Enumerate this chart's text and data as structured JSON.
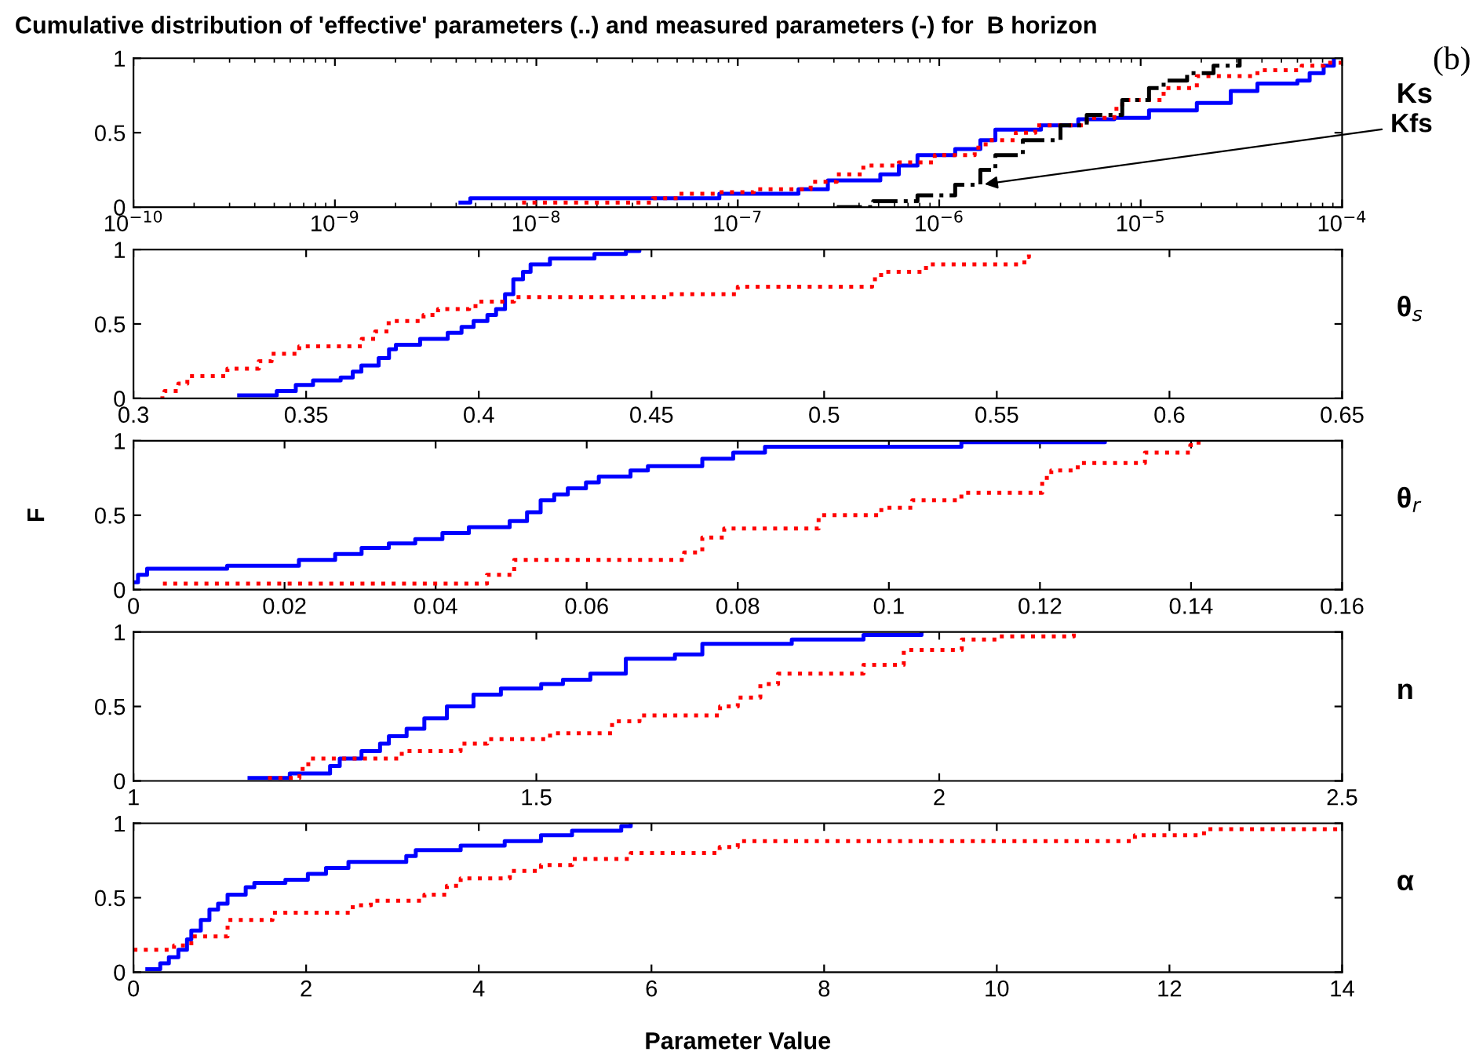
{
  "chart_data": [
    {
      "type": "step",
      "title": "Cumulative distribution of 'effective' parameters (..) and measured parameters (-) for  B horizon",
      "log": "x",
      "xlim": [
        1e-10,
        0.0001
      ],
      "xticks": [
        {
          "value": 1e-10,
          "label": "10$^{−10}$"
        },
        {
          "value": 1e-09,
          "label": "10$^{−9}$"
        },
        {
          "value": 1e-08,
          "label": "10$^{−8}$"
        },
        {
          "value": 1e-07,
          "label": "10$^{−7}$"
        },
        {
          "value": 1e-06,
          "label": "10$^{−6}$"
        },
        {
          "value": 1e-05,
          "label": "10$^{−5}$"
        },
        {
          "value": 0.0001,
          "label": "10$^{−4}$"
        }
      ],
      "ylim": [
        0,
        1
      ],
      "yticks": [
        0,
        0.5,
        1
      ],
      "grid": false,
      "legend": false,
      "annotations": [
        "Ks",
        {
          "text": "Kfs",
          "x": 1.6e-06,
          "y": 0.15
        },
        "(b)"
      ],
      "series": [
        {
          "color": "#0000ff",
          "line_style": "solid",
          "x": [
            4.2e-09,
            4.7e-09,
            8.1e-08,
            2e-07,
            2.8e-07,
            5.1e-07,
            6.3e-07,
            7.8e-07,
            1.2e-06,
            1.6e-06,
            1.9e-06,
            3.2e-06,
            4.9e-06,
            7.4e-06,
            1.1e-05,
            1.9e-05,
            2.8e-05,
            3.8e-05,
            6e-05,
            6.9e-05,
            8.1e-05,
            9.1e-05
          ],
          "values": [
            0.03,
            0.06,
            0.09,
            0.12,
            0.18,
            0.22,
            0.28,
            0.35,
            0.39,
            0.45,
            0.52,
            0.55,
            0.59,
            0.6,
            0.65,
            0.7,
            0.78,
            0.83,
            0.85,
            0.9,
            0.95,
            1.0
          ]
        },
        {
          "color": "#ff0000",
          "line_style": "dotted",
          "x": [
            8.5e-09,
            3.8e-08,
            5.1e-08,
            8.1e-08,
            1.2e-07,
            2.3e-07,
            3.1e-07,
            4.2e-07,
            6.3e-07,
            9.5e-07,
            1.5e-06,
            1.7e-06,
            2.4e-06,
            3e-06,
            5.4e-06,
            7.4e-06,
            8.1e-06,
            1.3e-05,
            1.9e-05,
            3.8e-05,
            6.3e-05,
            8.1e-05,
            0.0001
          ],
          "values": [
            0.03,
            0.06,
            0.09,
            0.1,
            0.12,
            0.17,
            0.22,
            0.28,
            0.3,
            0.35,
            0.4,
            0.45,
            0.5,
            0.55,
            0.6,
            0.66,
            0.72,
            0.8,
            0.88,
            0.92,
            0.95,
            0.97,
            1.0
          ]
        },
        {
          "color": "#000000",
          "line_style": "dashed",
          "x": [
            3.1e-07,
            4.7e-07,
            7.8e-07,
            1.2e-06,
            1.6e-06,
            1.9e-06,
            2.6e-06,
            4e-06,
            5.4e-06,
            8.1e-06,
            1.1e-05,
            1.3e-05,
            1.7e-05,
            2.3e-05,
            3.1e-05
          ],
          "values": [
            0.0,
            0.04,
            0.08,
            0.15,
            0.25,
            0.35,
            0.45,
            0.55,
            0.62,
            0.72,
            0.8,
            0.85,
            0.9,
            0.95,
            1.0
          ]
        }
      ]
    },
    {
      "type": "step",
      "xlim": [
        0.3,
        0.65
      ],
      "xticks": [
        0.3,
        0.35,
        0.4,
        0.45,
        0.5,
        0.55,
        0.6,
        0.65
      ],
      "ylim": [
        0,
        1
      ],
      "yticks": [
        0,
        0.5,
        1
      ],
      "grid": false,
      "legend": false,
      "annotations": [
        "θ$_{s}$"
      ],
      "series": [
        {
          "color": "#0000ff",
          "line_style": "solid",
          "x": [
            0.3306,
            0.3415,
            0.347,
            0.352,
            0.36,
            0.3635,
            0.366,
            0.371,
            0.374,
            0.376,
            0.383,
            0.391,
            0.395,
            0.3985,
            0.4025,
            0.405,
            0.4076,
            0.41,
            0.4128,
            0.415,
            0.4206,
            0.4335,
            0.4426,
            0.4465
          ],
          "values": [
            0.02,
            0.05,
            0.09,
            0.12,
            0.14,
            0.18,
            0.22,
            0.27,
            0.33,
            0.36,
            0.4,
            0.44,
            0.48,
            0.52,
            0.56,
            0.6,
            0.7,
            0.8,
            0.85,
            0.9,
            0.94,
            0.97,
            0.99,
            1.0
          ]
        },
        {
          "color": "#ff0000",
          "line_style": "dotted",
          "x": [
            0.3078,
            0.309,
            0.313,
            0.3156,
            0.3272,
            0.3363,
            0.34,
            0.348,
            0.3661,
            0.37,
            0.3739,
            0.384,
            0.3882,
            0.3972,
            0.4,
            0.4102,
            0.4543,
            0.475,
            0.5139,
            0.5165,
            0.5295,
            0.558,
            0.5593
          ],
          "values": [
            0.0,
            0.05,
            0.1,
            0.15,
            0.2,
            0.25,
            0.3,
            0.35,
            0.4,
            0.45,
            0.52,
            0.56,
            0.6,
            0.62,
            0.65,
            0.68,
            0.7,
            0.75,
            0.8,
            0.85,
            0.9,
            0.95,
            1.0
          ]
        }
      ]
    },
    {
      "type": "step",
      "xlim": [
        0,
        0.16
      ],
      "xticks": [
        0,
        0.02,
        0.04,
        0.06,
        0.08,
        0.1,
        0.12,
        0.14,
        0.16
      ],
      "ylim": [
        0,
        1
      ],
      "yticks": [
        0,
        0.5,
        1
      ],
      "ylabel": "F",
      "grid": false,
      "legend": false,
      "annotations": [
        "θ$_{r}$"
      ],
      "series": [
        {
          "color": "#0000ff",
          "line_style": "solid",
          "x": [
            0.0,
            0.0006,
            0.0018,
            0.0124,
            0.0219,
            0.0267,
            0.0302,
            0.0338,
            0.0373,
            0.0409,
            0.0444,
            0.0498,
            0.0521,
            0.0539,
            0.0557,
            0.0575,
            0.0599,
            0.0616,
            0.0658,
            0.0681,
            0.0753,
            0.0794,
            0.0836,
            0.1096,
            0.1286
          ],
          "values": [
            0.05,
            0.1,
            0.14,
            0.16,
            0.2,
            0.24,
            0.28,
            0.31,
            0.34,
            0.38,
            0.42,
            0.46,
            0.52,
            0.6,
            0.64,
            0.68,
            0.72,
            0.76,
            0.8,
            0.83,
            0.88,
            0.92,
            0.96,
            0.99,
            1.0
          ]
        },
        {
          "color": "#ff0000",
          "line_style": "dotted",
          "x": [
            0.0039,
            0.0468,
            0.0504,
            0.0729,
            0.0753,
            0.0782,
            0.0907,
            0.099,
            0.1031,
            0.1096,
            0.1203,
            0.1215,
            0.125,
            0.1339,
            0.1399,
            0.141
          ],
          "values": [
            0.04,
            0.1,
            0.2,
            0.25,
            0.35,
            0.41,
            0.5,
            0.55,
            0.6,
            0.65,
            0.75,
            0.8,
            0.85,
            0.92,
            0.97,
            1.0
          ]
        }
      ]
    },
    {
      "type": "step",
      "xlim": [
        1,
        2.5
      ],
      "xticks": [
        1,
        1.5,
        2,
        2.5
      ],
      "ylim": [
        0,
        1
      ],
      "yticks": [
        0,
        0.5,
        1
      ],
      "grid": false,
      "legend": false,
      "annotations": [
        "n"
      ],
      "series": [
        {
          "color": "#0000ff",
          "line_style": "solid",
          "x": [
            1.144,
            1.194,
            1.244,
            1.256,
            1.283,
            1.306,
            1.317,
            1.339,
            1.361,
            1.389,
            1.422,
            1.456,
            1.506,
            1.533,
            1.567,
            1.611,
            1.672,
            1.706,
            1.817,
            1.906,
            1.978
          ],
          "values": [
            0.02,
            0.05,
            0.1,
            0.15,
            0.2,
            0.25,
            0.3,
            0.35,
            0.42,
            0.5,
            0.58,
            0.62,
            0.65,
            0.68,
            0.72,
            0.82,
            0.85,
            0.92,
            0.95,
            0.98,
            1.0
          ]
        },
        {
          "color": "#ff0000",
          "line_style": "dotted",
          "x": [
            1.167,
            1.206,
            1.217,
            1.333,
            1.406,
            1.439,
            1.517,
            1.594,
            1.628,
            1.728,
            1.75,
            1.778,
            1.8,
            1.906,
            1.956,
            2.028,
            2.072,
            2.167
          ],
          "values": [
            0.02,
            0.08,
            0.15,
            0.2,
            0.25,
            0.28,
            0.32,
            0.4,
            0.44,
            0.5,
            0.56,
            0.65,
            0.72,
            0.78,
            0.88,
            0.95,
            0.97,
            1.0
          ]
        }
      ]
    },
    {
      "type": "step",
      "xlim": [
        0,
        14
      ],
      "xticks": [
        0,
        2,
        4,
        6,
        8,
        10,
        12,
        14
      ],
      "ylim": [
        0,
        1
      ],
      "yticks": [
        0,
        0.5,
        1
      ],
      "xlabel": "Parameter Value",
      "grid": false,
      "legend": false,
      "annotations": [
        "α"
      ],
      "series": [
        {
          "color": "#0000ff",
          "line_style": "solid",
          "x": [
            0.16,
            0.31,
            0.41,
            0.52,
            0.62,
            0.67,
            0.78,
            0.88,
            0.98,
            1.09,
            1.3,
            1.4,
            1.76,
            2.02,
            2.23,
            2.49,
            3.16,
            3.27,
            3.79,
            4.3,
            4.72,
            5.08,
            5.65,
            5.76
          ],
          "values": [
            0.02,
            0.06,
            0.1,
            0.15,
            0.22,
            0.28,
            0.35,
            0.42,
            0.46,
            0.52,
            0.57,
            0.6,
            0.62,
            0.66,
            0.7,
            0.74,
            0.78,
            0.82,
            0.85,
            0.88,
            0.92,
            0.95,
            0.98,
            1.0
          ]
        },
        {
          "color": "#ff0000",
          "line_style": "dotted",
          "x": [
            0.0,
            0.47,
            0.67,
            1.09,
            1.61,
            2.54,
            2.75,
            3.37,
            3.63,
            3.79,
            4.36,
            4.72,
            5.08,
            5.76,
            6.79,
            7.0,
            11.6,
            12.4,
            14.0
          ],
          "values": [
            0.15,
            0.18,
            0.24,
            0.35,
            0.4,
            0.45,
            0.48,
            0.52,
            0.58,
            0.63,
            0.68,
            0.72,
            0.76,
            0.8,
            0.84,
            0.88,
            0.92,
            0.96,
            0.97
          ]
        }
      ]
    }
  ]
}
